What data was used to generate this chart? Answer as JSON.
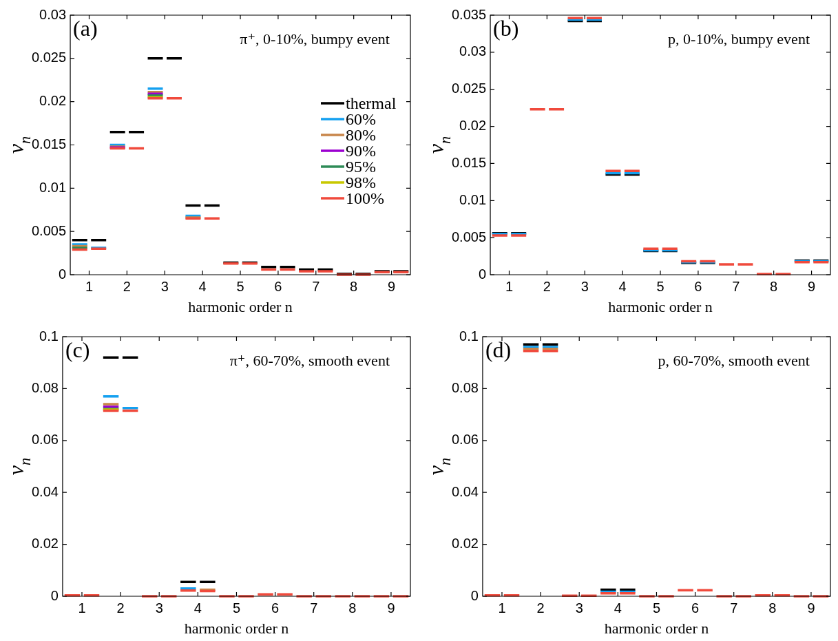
{
  "chart_data": [
    {
      "type": "line",
      "marker": "none",
      "line_style": "solid",
      "annotations": [
        "(a)",
        "π⁺, 0-10%, bumpy event"
      ],
      "xlabel": "harmonic order n",
      "ylabel": "v$_{n}$",
      "legend": "right",
      "xlim": [
        0.5,
        9.5
      ],
      "xticks": [
        1,
        2,
        3,
        4,
        5,
        6,
        7,
        8,
        9
      ],
      "ylim": [
        0,
        0.03
      ],
      "yticks": [
        0,
        0.005,
        0.01,
        0.015,
        0.02,
        0.025,
        0.03
      ],
      "x": [
        0.55,
        0.95,
        1,
        1.05,
        1.45,
        1.5,
        1.55,
        1.95,
        2,
        2.05,
        2.45,
        2.5,
        2.55,
        2.95,
        3,
        3.05,
        3.45,
        3.5,
        3.55,
        3.95,
        4,
        4.05,
        4.45,
        4.5,
        4.55,
        4.95,
        5,
        5.05,
        5.45,
        5.5,
        5.55,
        5.95,
        6,
        6.05,
        6.45,
        6.5,
        6.55,
        6.95,
        7,
        7.05,
        7.45,
        7.5,
        7.55,
        7.95,
        8,
        8.05,
        8.45,
        8.5,
        8.55,
        8.95,
        9,
        9.05,
        9.45
      ],
      "series": [
        {
          "name": "thermal",
          "color": "#000000",
          "values": [
            0.004,
            0.004,
            null,
            0.004,
            0.004,
            null,
            0.0165,
            0.0165,
            null,
            0.0165,
            0.0165,
            null,
            0.025,
            0.025,
            null,
            0.025,
            0.025,
            null,
            0.008,
            0.008,
            null,
            0.008,
            0.008,
            null,
            0.0014,
            0.0014,
            null,
            0.0014,
            0.0014,
            null,
            0.0009,
            0.0009,
            null,
            0.0009,
            0.0009,
            null,
            0.0006,
            0.0006,
            null,
            0.0006,
            0.0006,
            null,
            0.0001,
            0.0001,
            null,
            0.0001,
            0.0001,
            null,
            0.0004,
            0.0004,
            null,
            0.0004,
            0.0004
          ]
        },
        {
          "name": "60%",
          "color": "#14a0f0",
          "values": [
            0.0035,
            0.0035,
            null,
            0.0031,
            0.0031,
            null,
            0.015,
            0.015,
            null,
            null,
            null,
            null,
            0.0215,
            0.0215,
            null,
            null,
            null,
            null,
            0.0068,
            0.0068,
            null,
            null,
            null,
            null,
            null,
            null,
            null,
            null,
            null,
            null,
            null,
            null,
            null,
            null,
            null,
            null,
            null,
            null,
            null,
            null,
            null,
            null,
            null,
            null,
            null,
            null,
            null,
            null,
            null,
            null,
            null,
            null,
            null
          ]
        },
        {
          "name": "80%",
          "color": "#c8864a",
          "values": [
            0.0033,
            0.0033,
            null,
            null,
            null,
            null,
            0.0148,
            0.0148,
            null,
            null,
            null,
            null,
            0.0211,
            0.0211,
            null,
            null,
            null,
            null,
            0.0066,
            0.0066,
            null,
            null,
            null,
            null,
            null,
            null,
            null,
            null,
            null,
            null,
            null,
            null,
            null,
            null,
            null,
            null,
            null,
            null,
            null,
            null,
            null,
            null,
            null,
            null,
            null,
            null,
            null,
            null,
            null,
            null,
            null,
            null,
            null
          ]
        },
        {
          "name": "90%",
          "color": "#9b00d0",
          "values": [
            null,
            null,
            null,
            null,
            null,
            null,
            0.0147,
            0.0147,
            null,
            null,
            null,
            null,
            0.0209,
            0.0209,
            null,
            null,
            null,
            null,
            null,
            null,
            null,
            null,
            null,
            null,
            null,
            null,
            null,
            null,
            null,
            null,
            null,
            null,
            null,
            null,
            null,
            null,
            null,
            null,
            null,
            null,
            null,
            null,
            null,
            null,
            null,
            null,
            null,
            null,
            null,
            null,
            null,
            null,
            null
          ]
        },
        {
          "name": "95%",
          "color": "#2e8b57",
          "values": [
            0.0031,
            0.0031,
            null,
            null,
            null,
            null,
            null,
            null,
            null,
            null,
            null,
            null,
            0.0207,
            0.0207,
            null,
            null,
            null,
            null,
            null,
            null,
            null,
            null,
            null,
            null,
            null,
            null,
            null,
            null,
            null,
            null,
            null,
            null,
            null,
            null,
            null,
            null,
            null,
            null,
            null,
            null,
            null,
            null,
            null,
            null,
            null,
            null,
            null,
            null,
            null,
            null,
            null,
            null,
            null
          ]
        },
        {
          "name": "98%",
          "color": "#c8c800",
          "values": [
            null,
            null,
            null,
            null,
            null,
            null,
            null,
            null,
            null,
            null,
            null,
            null,
            0.0205,
            0.0205,
            null,
            null,
            null,
            null,
            null,
            null,
            null,
            null,
            null,
            null,
            null,
            null,
            null,
            null,
            null,
            null,
            null,
            null,
            null,
            null,
            null,
            null,
            null,
            null,
            null,
            null,
            null,
            null,
            null,
            null,
            null,
            null,
            null,
            null,
            null,
            null,
            null,
            null,
            null
          ]
        },
        {
          "name": "100%",
          "color": "#f04a3c",
          "values": [
            0.0029,
            0.0029,
            null,
            0.003,
            0.003,
            null,
            0.0146,
            0.0146,
            null,
            0.0146,
            0.0146,
            null,
            0.0204,
            0.0204,
            null,
            0.0204,
            0.0204,
            null,
            0.0065,
            0.0065,
            null,
            0.0065,
            0.0065,
            null,
            0.0013,
            0.0013,
            null,
            0.0013,
            0.0013,
            null,
            0.0006,
            0.0006,
            null,
            0.0006,
            0.0006,
            null,
            0.0004,
            0.0004,
            null,
            0.0004,
            0.0004,
            null,
            0,
            0,
            null,
            0,
            0,
            null,
            0.0003,
            0.0003,
            null,
            0.0003,
            0.0003
          ]
        }
      ]
    },
    {
      "type": "line",
      "marker": "none",
      "line_style": "solid",
      "annotations": [
        "(b)",
        "p, 0-10%, bumpy event"
      ],
      "xlabel": "harmonic order n",
      "ylabel": "v$_{n}$",
      "xlim": [
        0.5,
        9.5
      ],
      "xticks": [
        1,
        2,
        3,
        4,
        5,
        6,
        7,
        8,
        9
      ],
      "ylim": [
        0,
        0.035
      ],
      "yticks": [
        0,
        0.005,
        0.01,
        0.015,
        0.02,
        0.025,
        0.03,
        0.035
      ],
      "x": [
        0.55,
        0.95,
        1,
        1.05,
        1.45,
        1.5,
        1.55,
        1.95,
        2,
        2.05,
        2.45,
        2.5,
        2.55,
        2.95,
        3,
        3.05,
        3.45,
        3.5,
        3.55,
        3.95,
        4,
        4.05,
        4.45,
        4.5,
        4.55,
        4.95,
        5,
        5.05,
        5.45,
        5.5,
        5.55,
        5.95,
        6,
        6.05,
        6.45,
        6.5,
        6.55,
        6.95,
        7,
        7.05,
        7.45,
        7.5,
        7.55,
        7.95,
        8,
        8.05,
        8.45,
        8.5,
        8.55,
        8.95,
        9,
        9.05,
        9.45
      ],
      "series": [
        {
          "color": "#000000",
          "values": [
            0.0056,
            0.0056,
            null,
            0.0056,
            0.0056,
            null,
            null,
            null,
            null,
            null,
            null,
            null,
            0.0342,
            0.0342,
            null,
            0.0342,
            0.0342,
            null,
            0.0135,
            0.0135,
            null,
            0.0135,
            0.0135,
            null,
            0.0032,
            0.0032,
            null,
            0.0032,
            0.0032,
            null,
            0.0016,
            0.0016,
            null,
            0.0016,
            0.0016,
            null,
            null,
            null,
            null,
            null,
            null,
            null,
            null,
            null,
            null,
            null,
            null,
            null,
            0.0019,
            0.0019,
            null,
            0.0019,
            0.0019
          ]
        },
        {
          "color": "#14a0f0",
          "values": [
            0.0055,
            0.0055,
            null,
            0.0055,
            0.0055,
            null,
            null,
            null,
            null,
            null,
            null,
            null,
            0.0344,
            0.0344,
            null,
            0.0344,
            0.0344,
            null,
            0.0137,
            0.0137,
            null,
            0.0137,
            0.0137,
            null,
            0.0033,
            0.0033,
            null,
            0.0033,
            0.0033,
            null,
            0.0017,
            0.0017,
            null,
            0.0017,
            0.0017,
            null,
            null,
            null,
            null,
            null,
            null,
            null,
            null,
            null,
            null,
            null,
            null,
            null,
            0.0018,
            0.0018,
            null,
            0.0018,
            0.0018
          ]
        },
        {
          "color": "#f04a3c",
          "values": [
            0.0053,
            0.0053,
            null,
            0.0053,
            0.0053,
            null,
            0.0223,
            0.0223,
            null,
            0.0223,
            0.0223,
            null,
            0.0346,
            0.0346,
            null,
            0.0346,
            0.0346,
            null,
            0.014,
            0.014,
            null,
            0.014,
            0.014,
            null,
            0.0035,
            0.0035,
            null,
            0.0035,
            0.0035,
            null,
            0.0018,
            0.0018,
            null,
            0.0018,
            0.0018,
            null,
            0.0014,
            0.0014,
            null,
            0.0014,
            0.0014,
            null,
            0.0001,
            0.0001,
            null,
            0.0001,
            0.0001,
            null,
            0.0017,
            0.0017,
            null,
            0.0017,
            0.0017
          ]
        }
      ]
    },
    {
      "type": "line",
      "marker": "none",
      "line_style": "solid",
      "annotations": [
        "(c)",
        "π⁺, 60-70%, smooth event"
      ],
      "xlabel": "harmonic order n",
      "ylabel": "v$_{n}$",
      "xlim": [
        0.5,
        9.5
      ],
      "xticks": [
        1,
        2,
        3,
        4,
        5,
        6,
        7,
        8,
        9
      ],
      "ylim": [
        0,
        0.1
      ],
      "yticks": [
        0,
        0.02,
        0.04,
        0.06,
        0.08,
        0.1
      ],
      "x": [
        0.55,
        0.95,
        1,
        1.05,
        1.45,
        1.5,
        1.55,
        1.95,
        2,
        2.05,
        2.45,
        2.5,
        2.55,
        2.95,
        3,
        3.05,
        3.45,
        3.5,
        3.55,
        3.95,
        4,
        4.05,
        4.45,
        4.5,
        4.55,
        4.95,
        5,
        5.05,
        5.45,
        5.5,
        5.55,
        5.95,
        6,
        6.05,
        6.45,
        6.5,
        6.55,
        6.95,
        7,
        7.05,
        7.45,
        7.5,
        7.55,
        7.95,
        8,
        8.05,
        8.45,
        8.5,
        8.55,
        8.95,
        9,
        9.05,
        9.45
      ],
      "series": [
        {
          "color": "#000000",
          "values": [
            null,
            null,
            null,
            null,
            null,
            null,
            0.092,
            0.092,
            null,
            0.092,
            0.092,
            null,
            null,
            null,
            null,
            null,
            null,
            null,
            0.0055,
            0.0055,
            null,
            0.0055,
            0.0055,
            null,
            null,
            null,
            null,
            null,
            null,
            null,
            null,
            null,
            null,
            null,
            null,
            null,
            null,
            null,
            null,
            null,
            null,
            null,
            null,
            null,
            null,
            null,
            null,
            null,
            null,
            null,
            null,
            null,
            null
          ]
        },
        {
          "color": "#14a0f0",
          "values": [
            null,
            null,
            null,
            null,
            null,
            null,
            0.077,
            0.077,
            null,
            0.0725,
            0.0725,
            null,
            null,
            null,
            null,
            null,
            null,
            null,
            0.003,
            0.003,
            null,
            null,
            null,
            null,
            null,
            null,
            null,
            null,
            null,
            null,
            null,
            null,
            null,
            null,
            null,
            null,
            null,
            null,
            null,
            null,
            null,
            null,
            null,
            null,
            null,
            null,
            null,
            null,
            null,
            null,
            null,
            null,
            null
          ]
        },
        {
          "color": "#c8864a",
          "values": [
            null,
            null,
            null,
            null,
            null,
            null,
            0.074,
            0.074,
            null,
            null,
            null,
            null,
            null,
            null,
            null,
            null,
            null,
            null,
            null,
            null,
            null,
            0.0025,
            0.0025,
            null,
            null,
            null,
            null,
            null,
            null,
            null,
            null,
            null,
            null,
            null,
            null,
            null,
            null,
            null,
            null,
            null,
            null,
            null,
            null,
            null,
            null,
            null,
            null,
            null,
            null,
            null,
            null,
            null,
            null
          ]
        },
        {
          "color": "#9b00d0",
          "values": [
            null,
            null,
            null,
            null,
            null,
            null,
            0.073,
            0.073,
            null,
            null,
            null,
            null,
            null,
            null,
            null,
            null,
            null,
            null,
            null,
            null,
            null,
            null,
            null,
            null,
            null,
            null,
            null,
            null,
            null,
            null,
            null,
            null,
            null,
            null,
            null,
            null,
            null,
            null,
            null,
            null,
            null,
            null,
            null,
            null,
            null,
            null,
            null,
            null,
            null,
            null,
            null,
            null,
            null
          ]
        },
        {
          "color": "#2e8b57",
          "values": [
            null,
            null,
            null,
            null,
            null,
            null,
            0.0722,
            0.0722,
            null,
            null,
            null,
            null,
            null,
            null,
            null,
            null,
            null,
            null,
            null,
            null,
            null,
            null,
            null,
            null,
            null,
            null,
            null,
            null,
            null,
            null,
            null,
            null,
            null,
            null,
            null,
            null,
            null,
            null,
            null,
            null,
            null,
            null,
            null,
            null,
            null,
            null,
            null,
            null,
            null,
            null,
            null,
            null,
            null
          ]
        },
        {
          "color": "#c8c800",
          "values": [
            null,
            null,
            null,
            null,
            null,
            null,
            0.0719,
            0.0719,
            null,
            null,
            null,
            null,
            null,
            null,
            null,
            null,
            null,
            null,
            null,
            null,
            null,
            null,
            null,
            null,
            null,
            null,
            null,
            null,
            null,
            null,
            null,
            null,
            null,
            null,
            null,
            null,
            null,
            null,
            null,
            null,
            null,
            null,
            null,
            null,
            null,
            null,
            null,
            null,
            null,
            null,
            null,
            null,
            null
          ]
        },
        {
          "color": "#f04a3c",
          "values": [
            0.0003,
            0.0003,
            null,
            0.0003,
            0.0003,
            null,
            0.0715,
            0.0715,
            null,
            0.0715,
            0.0715,
            null,
            0,
            0,
            null,
            0,
            0,
            null,
            0.0022,
            0.0022,
            null,
            0.002,
            0.002,
            null,
            0,
            0,
            null,
            0,
            0,
            null,
            0.0007,
            0.0007,
            null,
            0.0007,
            0.0007,
            null,
            0,
            0,
            null,
            0,
            0,
            null,
            0,
            0,
            null,
            0,
            0,
            null,
            0,
            0,
            null,
            0,
            0
          ]
        }
      ]
    },
    {
      "type": "line",
      "marker": "none",
      "line_style": "solid",
      "annotations": [
        "(d)",
        "p, 60-70%, smooth event"
      ],
      "xlabel": "harmonic order n",
      "ylabel": "v$_{n}$",
      "xlim": [
        0.5,
        9.5
      ],
      "xticks": [
        1,
        2,
        3,
        4,
        5,
        6,
        7,
        8,
        9
      ],
      "ylim": [
        0,
        0.1
      ],
      "yticks": [
        0,
        0.02,
        0.04,
        0.06,
        0.08,
        0.1
      ],
      "x": [
        0.55,
        0.95,
        1,
        1.05,
        1.45,
        1.5,
        1.55,
        1.95,
        2,
        2.05,
        2.45,
        2.5,
        2.55,
        2.95,
        3,
        3.05,
        3.45,
        3.5,
        3.55,
        3.95,
        4,
        4.05,
        4.45,
        4.5,
        4.55,
        4.95,
        5,
        5.05,
        5.45,
        5.5,
        5.55,
        5.95,
        6,
        6.05,
        6.45,
        6.5,
        6.55,
        6.95,
        7,
        7.05,
        7.45,
        7.5,
        7.55,
        7.95,
        8,
        8.05,
        8.45,
        8.5,
        8.55,
        8.95,
        9,
        9.05,
        9.45
      ],
      "series": [
        {
          "color": "#000000",
          "values": [
            null,
            null,
            null,
            null,
            null,
            null,
            0.097,
            0.097,
            null,
            0.097,
            0.097,
            null,
            null,
            null,
            null,
            null,
            null,
            null,
            0.0025,
            0.0025,
            null,
            0.0025,
            0.0025,
            null,
            null,
            null,
            null,
            null,
            null,
            null,
            null,
            null,
            null,
            null,
            null,
            null,
            null,
            null,
            null,
            null,
            null,
            null,
            null,
            null,
            null,
            null,
            null,
            null,
            null,
            null,
            null,
            null,
            null
          ]
        },
        {
          "color": "#14a0f0",
          "values": [
            null,
            null,
            null,
            null,
            null,
            null,
            0.096,
            0.096,
            null,
            0.096,
            0.096,
            null,
            null,
            null,
            null,
            null,
            null,
            null,
            0.0017,
            0.0017,
            null,
            0.0017,
            0.0017,
            null,
            null,
            null,
            null,
            null,
            null,
            null,
            null,
            null,
            null,
            null,
            null,
            null,
            null,
            null,
            null,
            null,
            null,
            null,
            null,
            null,
            null,
            null,
            null,
            null,
            null,
            null,
            null,
            null,
            null
          ]
        },
        {
          "color": "#c8864a",
          "values": [
            null,
            null,
            null,
            null,
            null,
            null,
            0.0953,
            0.0953,
            null,
            0.0953,
            0.0953,
            null,
            null,
            null,
            null,
            null,
            null,
            null,
            null,
            null,
            null,
            null,
            null,
            null,
            null,
            null,
            null,
            null,
            null,
            null,
            null,
            null,
            null,
            null,
            null,
            null,
            null,
            null,
            null,
            null,
            null,
            null,
            null,
            null,
            null,
            null,
            null,
            null,
            null,
            null,
            null,
            null,
            null
          ]
        },
        {
          "color": "#f04a3c",
          "values": [
            0.0003,
            0.0003,
            null,
            0.0003,
            0.0003,
            null,
            0.0945,
            0.0945,
            null,
            0.0945,
            0.0945,
            null,
            0.0002,
            0.0002,
            null,
            0.0002,
            0.0002,
            null,
            0.0011,
            0.0011,
            null,
            0.0011,
            0.0011,
            null,
            0,
            0,
            null,
            0,
            0,
            null,
            0.0023,
            0.0023,
            null,
            0.0023,
            0.0023,
            null,
            0,
            0,
            null,
            0,
            0,
            null,
            0.0003,
            0.0003,
            null,
            0.0003,
            0.0003,
            null,
            0,
            0,
            null,
            0,
            0
          ]
        }
      ]
    }
  ]
}
